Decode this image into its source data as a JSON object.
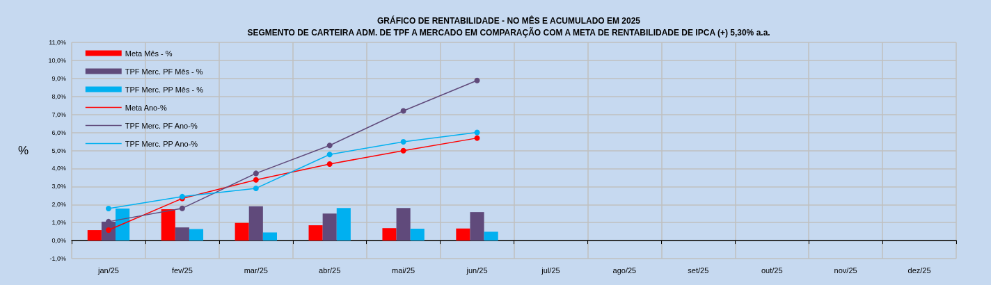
{
  "chart_data": {
    "type": "bar",
    "title": "GRÁFICO DE RENTABILIDADE - NO MÊS E ACUMULADO EM 2025",
    "subtitle": "SEGMENTO DE CARTEIRA ADM. DE TPF A MERCADO EM COMPARAÇÃO COM A META DE RENTABILIDADE DE IPCA (+) 5,30% a.a.",
    "ylabel": "%",
    "categories": [
      "jan/25",
      "fev/25",
      "mar/25",
      "abr/25",
      "mai/25",
      "jun/25",
      "jul/25",
      "ago/25",
      "set/25",
      "out/25",
      "nov/25",
      "dez/25"
    ],
    "series": [
      {
        "name": "Meta Mês - %",
        "color": "#ff0000",
        "values": [
          0.58,
          1.74,
          0.98,
          0.85,
          0.69,
          0.67,
          null,
          null,
          null,
          null,
          null,
          null
        ]
      },
      {
        "name": "TPF Merc. PF Mês - %",
        "color": "#604a7b",
        "values": [
          1.05,
          0.73,
          1.9,
          1.5,
          1.81,
          1.58,
          null,
          null,
          null,
          null,
          null,
          null
        ]
      },
      {
        "name": "TPF Merc. PP Mês - %",
        "color": "#00b0f0",
        "values": [
          1.78,
          0.64,
          0.45,
          1.81,
          0.66,
          0.49,
          null,
          null,
          null,
          null,
          null,
          null
        ]
      },
      {
        "name": "Meta Ano-%",
        "type": "line",
        "color": "#ff0000",
        "values": [
          0.58,
          2.34,
          3.37,
          4.25,
          4.99,
          5.69,
          null,
          null,
          null,
          null,
          null,
          null
        ]
      },
      {
        "name": "TPF Merc. PF Ano-%",
        "type": "line",
        "color": "#604a7b",
        "values": [
          1.05,
          1.79,
          3.73,
          5.28,
          7.2,
          8.89,
          null,
          null,
          null,
          null,
          null,
          null
        ]
      },
      {
        "name": "TPF Merc. PP Ano-%",
        "type": "line",
        "color": "#00b0f0",
        "values": [
          1.78,
          2.44,
          2.9,
          4.78,
          5.48,
          6.0,
          null,
          null,
          null,
          null,
          null,
          null
        ]
      }
    ],
    "ylim": [
      -1,
      11
    ],
    "yticks": [
      {
        "value": -1,
        "label": "-1,0%"
      },
      {
        "value": 0,
        "label": "0,0%"
      },
      {
        "value": 1,
        "label": "1,0%"
      },
      {
        "value": 2,
        "label": "2,0%"
      },
      {
        "value": 3,
        "label": "3,0%"
      },
      {
        "value": 4,
        "label": "4,0%"
      },
      {
        "value": 5,
        "label": "5,0%"
      },
      {
        "value": 6,
        "label": "6,0%"
      },
      {
        "value": 7,
        "label": "7,0%"
      },
      {
        "value": 8,
        "label": "8,0%"
      },
      {
        "value": 9,
        "label": "9,0%"
      },
      {
        "value": 10,
        "label": "10,0%"
      },
      {
        "value": 11,
        "label": "11,0%"
      }
    ],
    "grid": true,
    "legend": "top left",
    "marker": "circle"
  }
}
